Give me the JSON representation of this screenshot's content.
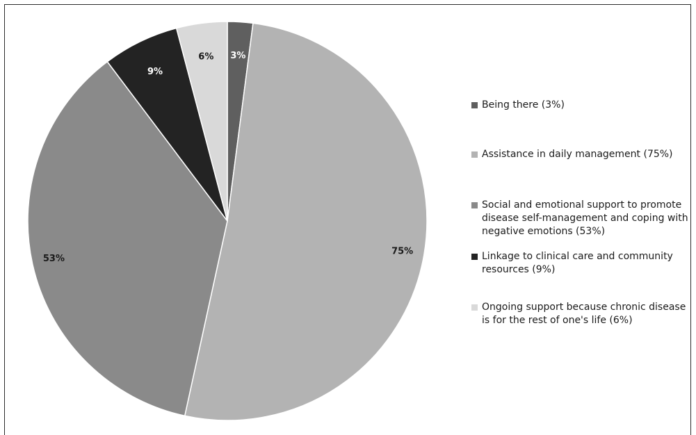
{
  "chart_data": {
    "type": "pie",
    "slices": [
      {
        "label": "Being there (3%)",
        "value": 3,
        "value_label": "3%",
        "color": "#5f5f5f",
        "label_color": "#ffffff"
      },
      {
        "label": "Assistance in daily management (75%)",
        "value": 75,
        "value_label": "75%",
        "color": "#b3b3b3",
        "label_color": "#1a1a1a"
      },
      {
        "label": "Social and emotional support to promote disease self-management and coping with negative emotions (53%)",
        "value": 53,
        "value_label": "53%",
        "color": "#8a8a8a",
        "label_color": "#1a1a1a"
      },
      {
        "label": "Linkage to clinical care and community resources (9%)",
        "value": 9,
        "value_label": "9%",
        "color": "#232323",
        "label_color": "#ffffff"
      },
      {
        "label": "Ongoing support because chronic disease is for the rest of one's life (6%)",
        "value": 6,
        "value_label": "6%",
        "color": "#d9d9d9",
        "label_color": "#1a1a1a"
      }
    ],
    "start_angle_deg": 0,
    "direction": "clockwise",
    "legend_position": "right"
  }
}
